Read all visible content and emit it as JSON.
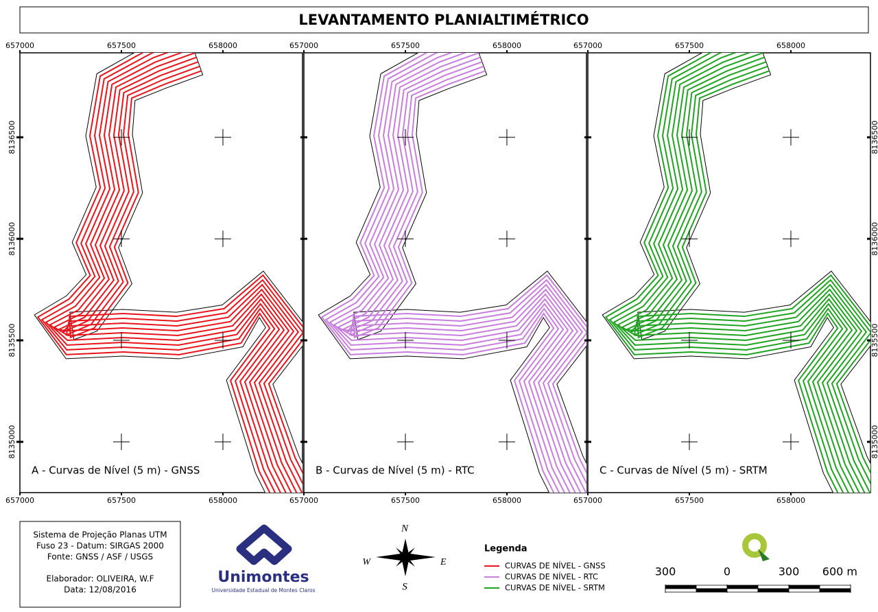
{
  "title": "LEVANTAMENTO PLANIALTIMÉTRICO",
  "map": {
    "xlim": [
      657000,
      658392
    ],
    "ylim": [
      8134750,
      8136916
    ],
    "xticks": [
      657000,
      657500,
      658000
    ],
    "yticks": [
      8135000,
      8135500,
      8136000,
      8136500
    ]
  },
  "panels": [
    {
      "caption": "A - Curvas de Nível (5 m) - GNSS"
    },
    {
      "caption": "B - Curvas de Nível (5 m)  - RTC"
    },
    {
      "caption": "C - Curvas de Nível (5 m)  - SRTM"
    }
  ],
  "info": {
    "lines": [
      "Sistema de Projeção Planas UTM",
      "Fuso 23 - Datum: SIRGAS 2000",
      "Fonte: GNSS / ASF / USGS",
      "Elaborador: OLIVEIRA, W.F",
      "Data: 12/08/2016"
    ]
  },
  "logo": {
    "name": "Unimontes",
    "subtitle": "Universidade Estadual de Montes Claros"
  },
  "compass": {
    "n": "N",
    "s": "S",
    "e": "E",
    "w": "W"
  },
  "legend": {
    "title": "Legenda",
    "items": [
      {
        "label": "CURVAS DE NÍVEL - GNSS",
        "color": "#e8131b"
      },
      {
        "label": "CURVAS DE NÍVEL - RTC",
        "color": "#c77ddb"
      },
      {
        "label": "CURVAS DE NÍVEL - SRTM",
        "color": "#1fa21f"
      }
    ]
  },
  "scale_bar": {
    "ticks": [
      {
        "value": -300,
        "label": "300"
      },
      0,
      300,
      {
        "value": 600,
        "label": "600 m"
      }
    ]
  }
}
